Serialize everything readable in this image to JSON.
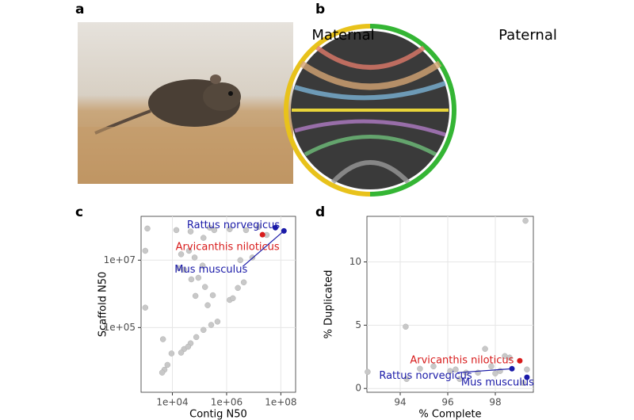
{
  "panel_labels": [
    "a",
    "b",
    "c",
    "d"
  ],
  "circos": {
    "left_label": "Maternal",
    "right_label": "Paternal"
  },
  "chart_data": [
    {
      "type": "scatter",
      "xlabel": "Contig N50",
      "ylabel": "Scaffold N50",
      "log_x": true,
      "log_y": true,
      "grid": true,
      "xlim": [
        700,
        350000000
      ],
      "ylim": [
        1200,
        200000000
      ],
      "xticks": [
        {
          "value": 10000,
          "label": "1e+04"
        },
        {
          "value": 1000000,
          "label": "1e+06"
        },
        {
          "value": 100000000,
          "label": "1e+08"
        }
      ],
      "yticks": [
        {
          "value": 100000,
          "label": "1e+05"
        },
        {
          "value": 10000000,
          "label": "1e+07"
        }
      ],
      "point_color": "#c8c8c8",
      "x": [
        1000,
        1000,
        1200,
        4500,
        5100,
        4200,
        6600,
        14000,
        21000,
        47000,
        41000,
        66000,
        27000,
        50000,
        91000,
        130000,
        160000,
        71000,
        200000,
        310000,
        1300000,
        1700000,
        460000,
        270000,
        140000,
        76000,
        47000,
        27000,
        38000,
        21000,
        9300,
        2600000,
        4300000,
        3200000,
        8900000,
        30000000,
        15000000,
        240000,
        350000,
        1300000,
        5200000,
        17000,
        140000
      ],
      "y": [
        19000000,
        390000,
        87000000,
        45000,
        5600,
        4600,
        7800,
        78000000,
        15000000,
        71000000,
        19000000,
        12000000,
        5200000,
        2700000,
        3000000,
        6900000,
        1600000,
        870000,
        460000,
        910000,
        660000,
        740000,
        150000,
        120000,
        85000,
        52000,
        34000,
        23000,
        27000,
        18000,
        17000,
        1500000,
        2200000,
        10000000,
        12000000,
        56000000,
        97000000,
        92000000,
        78000000,
        83000000,
        78000000,
        5800000,
        46000000
      ],
      "highlights": [
        {
          "name": "Rattus norvegicus",
          "color": "#1a1aa8",
          "x": 63000000,
          "y": 92000000
        },
        {
          "name": "Arvicanthis niloticus",
          "color": "#d81b1b",
          "x": 21000000,
          "y": 57000000
        },
        {
          "name": "Mus musculus",
          "color": "#1a1aa8",
          "x": 130000000,
          "y": 74000000
        }
      ]
    },
    {
      "type": "scatter",
      "xlabel": "% Complete",
      "ylabel": "% Duplicated",
      "log_x": false,
      "log_y": false,
      "grid": true,
      "xlim": [
        92.6,
        99.6
      ],
      "ylim": [
        -0.3,
        13.6
      ],
      "xticks": [
        94,
        96,
        98
      ],
      "yticks": [
        0,
        5,
        10
      ],
      "point_color": "#c8c8c8",
      "x": [
        92.63,
        94.23,
        94.27,
        94.83,
        95.4,
        96.1,
        96.33,
        96.5,
        96.77,
        97.57,
        97.27,
        97.83,
        98.4,
        98.6,
        98,
        98.2,
        99.27,
        99.33,
        99.17
      ],
      "y": [
        1.31,
        4.88,
        0.75,
        1.56,
        1.75,
        1.38,
        1.5,
        0.75,
        1.25,
        3.13,
        1.25,
        1.75,
        2.56,
        2.44,
        1.19,
        1.38,
        13.25,
        1.5,
        0.44
      ],
      "highlights": [
        {
          "name": "Arvicanthis niloticus",
          "color": "#d81b1b",
          "x": 99.03,
          "y": 2.19
        },
        {
          "name": "Rattus norvegicus",
          "color": "#1a1aa8",
          "x": 98.7,
          "y": 1.56
        },
        {
          "name": "Mus musculus",
          "color": "#1a1aa8",
          "x": 99.33,
          "y": 0.88
        }
      ]
    }
  ]
}
